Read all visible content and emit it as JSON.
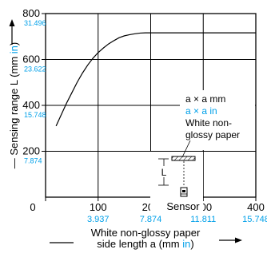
{
  "chart_data": {
    "type": "line",
    "title": "",
    "ylabel_prefix": "— Sensing range L (mm ",
    "ylabel_unit": "in",
    "ylabel_suffix": ")",
    "xlabel_line1": "White non-glossy paper",
    "xlabel_line2_prefix": "side length a (mm ",
    "xlabel_line2_unit": "in",
    "xlabel_line2_suffix": ")",
    "xlim": [
      0,
      400
    ],
    "ylim": [
      0,
      800
    ],
    "grid": true,
    "x_ticks": [
      {
        "value": 0,
        "mm": "0",
        "in": ""
      },
      {
        "value": 100,
        "mm": "100",
        "in": "3.937"
      },
      {
        "value": 200,
        "mm": "200",
        "in": "7.874"
      },
      {
        "value": 300,
        "mm": "300",
        "in": "11.811"
      },
      {
        "value": 400,
        "mm": "400",
        "in": "15.748"
      }
    ],
    "y_ticks": [
      {
        "value": 200,
        "mm": "200",
        "in": "7.874"
      },
      {
        "value": 400,
        "mm": "400",
        "in": "15.748"
      },
      {
        "value": 600,
        "mm": "600",
        "in": "23.622"
      },
      {
        "value": 800,
        "mm": "800",
        "in": "31.496"
      }
    ],
    "series": [
      {
        "x": [
          20,
          30,
          40,
          50,
          60,
          70,
          80,
          90,
          100,
          110,
          120,
          130,
          140,
          150,
          160,
          170,
          180,
          190,
          200,
          250,
          300,
          400
        ],
        "y": [
          310,
          360,
          410,
          455,
          500,
          540,
          575,
          605,
          630,
          650,
          668,
          682,
          695,
          703,
          708,
          712,
          715,
          716,
          716,
          716,
          716,
          716
        ]
      }
    ],
    "annotations": {
      "target_mm": "a × a mm",
      "target_in": "a × a in",
      "paper_line1": "White non-",
      "paper_line2": "glossy paper",
      "distance_label": "L",
      "sensor_label": "Sensor"
    },
    "colors": {
      "axis": "#000000",
      "curve": "#000000",
      "inch": "#00a0e9"
    }
  }
}
